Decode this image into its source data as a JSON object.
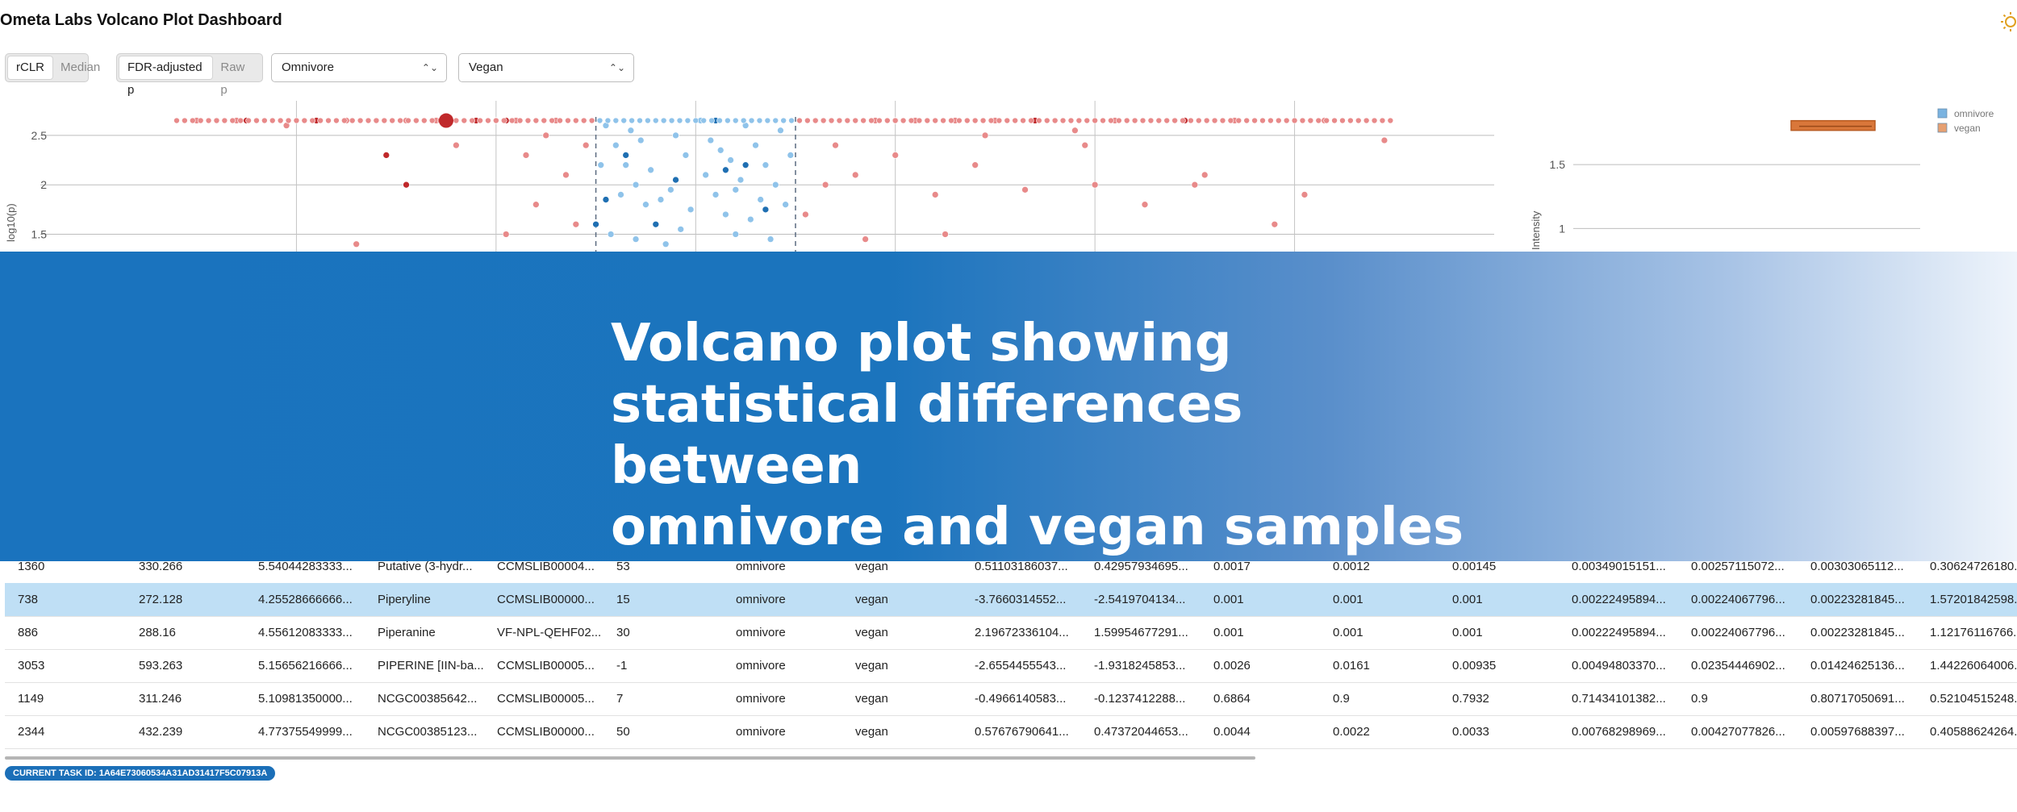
{
  "app": {
    "title": "Ometa Labs Volcano Plot Dashboard"
  },
  "controls": {
    "metric_toggle": {
      "options": [
        "rCLR",
        "Median"
      ],
      "active": "rCLR"
    },
    "pvalue_toggle": {
      "options": [
        "FDR-adjusted p",
        "Raw p"
      ],
      "active": "FDR-adjusted p"
    },
    "group1_select": {
      "value": "Omnivore"
    },
    "group2_select": {
      "value": "Vegan"
    }
  },
  "chart_data": [
    {
      "type": "scatter",
      "ylabel": "log10(p)",
      "yticks": [
        "2.5",
        "2",
        "1.5"
      ],
      "ylim": [
        1.3,
        2.85
      ],
      "xlim": [
        -6,
        8
      ],
      "vlines": [
        -4,
        -2,
        0,
        2,
        4,
        6
      ],
      "thresholds": [
        -1,
        1
      ],
      "series": [
        {
          "color": "#e88a8a",
          "points": [
            [
              -5.0,
              2.65
            ],
            [
              -4.6,
              2.65
            ],
            [
              -4.4,
              2.65
            ],
            [
              -4.1,
              2.6
            ],
            [
              -3.8,
              2.65
            ],
            [
              -3.5,
              2.65
            ],
            [
              -3.2,
              2.65
            ],
            [
              -3.1,
              2.3
            ],
            [
              -2.9,
              2.65
            ],
            [
              -2.6,
              2.65
            ],
            [
              -2.4,
              2.4
            ],
            [
              -2.2,
              2.65
            ],
            [
              -1.9,
              2.65
            ],
            [
              -1.7,
              2.3
            ],
            [
              -1.6,
              1.8
            ],
            [
              -1.4,
              2.65
            ],
            [
              -1.3,
              2.1
            ],
            [
              -1.2,
              1.6
            ],
            [
              -4.8,
              2.65
            ],
            [
              -2.8,
              2.65
            ],
            [
              -2.0,
              2.65
            ],
            [
              -1.8,
              2.65
            ],
            [
              -1.1,
              2.4
            ],
            [
              -1.5,
              2.5
            ],
            [
              -3.4,
              1.4
            ],
            [
              -1.9,
              1.5
            ],
            [
              1.2,
              2.65
            ],
            [
              1.4,
              2.4
            ],
            [
              1.6,
              2.1
            ],
            [
              1.8,
              2.65
            ],
            [
              2.0,
              2.3
            ],
            [
              2.2,
              2.65
            ],
            [
              2.4,
              1.9
            ],
            [
              2.6,
              2.65
            ],
            [
              2.8,
              2.2
            ],
            [
              3.0,
              2.65
            ],
            [
              3.3,
              1.95
            ],
            [
              3.6,
              2.65
            ],
            [
              3.9,
              2.4
            ],
            [
              4.2,
              2.65
            ],
            [
              4.5,
              1.8
            ],
            [
              4.8,
              2.65
            ],
            [
              5.1,
              2.1
            ],
            [
              5.4,
              2.65
            ],
            [
              5.8,
              1.6
            ],
            [
              6.3,
              2.65
            ],
            [
              6.9,
              2.45
            ],
            [
              1.1,
              1.7
            ],
            [
              1.3,
              2.0
            ],
            [
              2.5,
              1.5
            ],
            [
              3.8,
              2.55
            ],
            [
              4.0,
              2.0
            ],
            [
              6.1,
              1.9
            ],
            [
              1.7,
              1.45
            ],
            [
              2.9,
              2.5
            ],
            [
              5.0,
              2.0
            ]
          ]
        },
        {
          "color": "#c0292b",
          "points": [
            [
              -4.5,
              2.65
            ],
            [
              -3.8,
              2.65
            ],
            [
              -3.1,
              2.3
            ],
            [
              -2.9,
              2.0
            ],
            [
              -2.2,
              2.65
            ],
            [
              -1.9,
              2.65
            ],
            [
              2.0,
              2.65
            ],
            [
              3.4,
              2.65
            ],
            [
              4.9,
              2.65
            ]
          ]
        },
        {
          "color": "#8fc3ea",
          "points": [
            [
              -0.9,
              2.6
            ],
            [
              -0.8,
              2.4
            ],
            [
              -0.7,
              2.2
            ],
            [
              -0.6,
              2.0
            ],
            [
              -0.5,
              1.8
            ],
            [
              -0.4,
              1.6
            ],
            [
              -0.3,
              1.4
            ],
            [
              -0.2,
              2.5
            ],
            [
              -0.1,
              2.3
            ],
            [
              0.1,
              2.1
            ],
            [
              0.2,
              1.9
            ],
            [
              0.3,
              1.7
            ],
            [
              0.4,
              1.5
            ],
            [
              0.5,
              2.6
            ],
            [
              0.6,
              2.4
            ],
            [
              0.7,
              2.2
            ],
            [
              0.8,
              2.0
            ],
            [
              0.9,
              1.8
            ],
            [
              -0.85,
              1.5
            ],
            [
              -0.65,
              2.55
            ],
            [
              -0.45,
              2.15
            ],
            [
              -0.25,
              1.95
            ],
            [
              0.15,
              2.45
            ],
            [
              0.35,
              2.25
            ],
            [
              0.55,
              1.65
            ],
            [
              0.75,
              1.45
            ],
            [
              -0.75,
              1.9
            ],
            [
              -0.55,
              2.45
            ],
            [
              -0.35,
              1.85
            ],
            [
              -0.15,
              1.55
            ],
            [
              0.05,
              2.65
            ],
            [
              0.25,
              2.35
            ],
            [
              0.45,
              2.05
            ],
            [
              0.65,
              1.85
            ],
            [
              0.85,
              2.55
            ],
            [
              -0.95,
              2.2
            ],
            [
              -0.05,
              1.75
            ],
            [
              0.95,
              2.3
            ],
            [
              -0.6,
              1.45
            ],
            [
              0.4,
              1.95
            ]
          ]
        },
        {
          "color": "#1f6fb2",
          "points": [
            [
              -0.9,
              1.85
            ],
            [
              -0.7,
              2.3
            ],
            [
              -0.4,
              1.6
            ],
            [
              -0.2,
              2.05
            ],
            [
              0.2,
              2.65
            ],
            [
              0.3,
              2.15
            ],
            [
              0.5,
              2.2
            ],
            [
              0.7,
              1.75
            ],
            [
              -1.0,
              1.6
            ]
          ]
        }
      ],
      "highlight": {
        "color": "#c0292b",
        "point": [
          -2.5,
          2.65
        ]
      }
    },
    {
      "type": "box",
      "yticks": [
        "1.5",
        "1"
      ],
      "ylabel": "Intensity",
      "legend": {
        "position": "top-right",
        "entries": [
          {
            "name": "omnivore",
            "color": "#7ab3e0"
          },
          {
            "name": "vegan",
            "color": "#e6a072"
          }
        ]
      },
      "box": {
        "color": "#d9773a",
        "y": 1.8
      }
    }
  ],
  "banner": {
    "line1": "Volcano plot showing",
    "line2": "statistical differences between",
    "line3": "omnivore and vegan samples"
  },
  "table": {
    "rows": [
      {
        "c": [
          "1360",
          "330.266",
          "5.54044283333...",
          "Putative (3-hydr...",
          "CCMSLIB00004...",
          "53",
          "omnivore",
          "vegan",
          "0.51103186037...",
          "0.42957934695...",
          "0.0017",
          "0.0012",
          "0.00145",
          "0.00349015151...",
          "0.00257115072...",
          "0.00303065112...",
          "0.30624726180..."
        ]
      },
      {
        "c": [
          "738",
          "272.128",
          "4.25528666666...",
          "Piperyline",
          "CCMSLIB00000...",
          "15",
          "omnivore",
          "vegan",
          "-3.7660314552...",
          "-2.5419704134...",
          "0.001",
          "0.001",
          "0.001",
          "0.00222495894...",
          "0.00224067796...",
          "0.00223281845...",
          "1.57201842598..."
        ]
      },
      {
        "c": [
          "886",
          "288.16",
          "4.55612083333...",
          "Piperanine",
          "VF-NPL-QEHF02...",
          "30",
          "omnivore",
          "vegan",
          "2.19672336104...",
          "1.59954677291...",
          "0.001",
          "0.001",
          "0.001",
          "0.00222495894...",
          "0.00224067796...",
          "0.00223281845...",
          "1.12176116766..."
        ]
      },
      {
        "c": [
          "3053",
          "593.263",
          "5.15656216666...",
          "PIPERINE [IIN-ba...",
          "CCMSLIB00005...",
          "-1",
          "omnivore",
          "vegan",
          "-2.6554455543...",
          "-1.9318245853...",
          "0.0026",
          "0.0161",
          "0.00935",
          "0.00494803370...",
          "0.02354446902...",
          "0.01424625136...",
          "1.44226064006..."
        ]
      },
      {
        "c": [
          "1149",
          "311.246",
          "5.10981350000...",
          "NCGC00385642...",
          "CCMSLIB00005...",
          "7",
          "omnivore",
          "vegan",
          "-0.4966140583...",
          "-0.1237412288...",
          "0.6864",
          "0.9",
          "0.7932",
          "0.71434101382...",
          "0.9",
          "0.80717050691...",
          "0.52104515248..."
        ]
      },
      {
        "c": [
          "2344",
          "432.239",
          "4.77375549999...",
          "NCGC00385123...",
          "CCMSLIB00000...",
          "50",
          "omnivore",
          "vegan",
          "0.57676790641...",
          "0.47372044653...",
          "0.0044",
          "0.0022",
          "0.0033",
          "0.00768298969...",
          "0.00427077826...",
          "0.00597688397...",
          "0.40588624264..."
        ]
      }
    ],
    "selected_row": 1
  },
  "status": {
    "task_id": "CURRENT TASK ID: 1A64E73060534A31AD31417F5C07913A"
  }
}
